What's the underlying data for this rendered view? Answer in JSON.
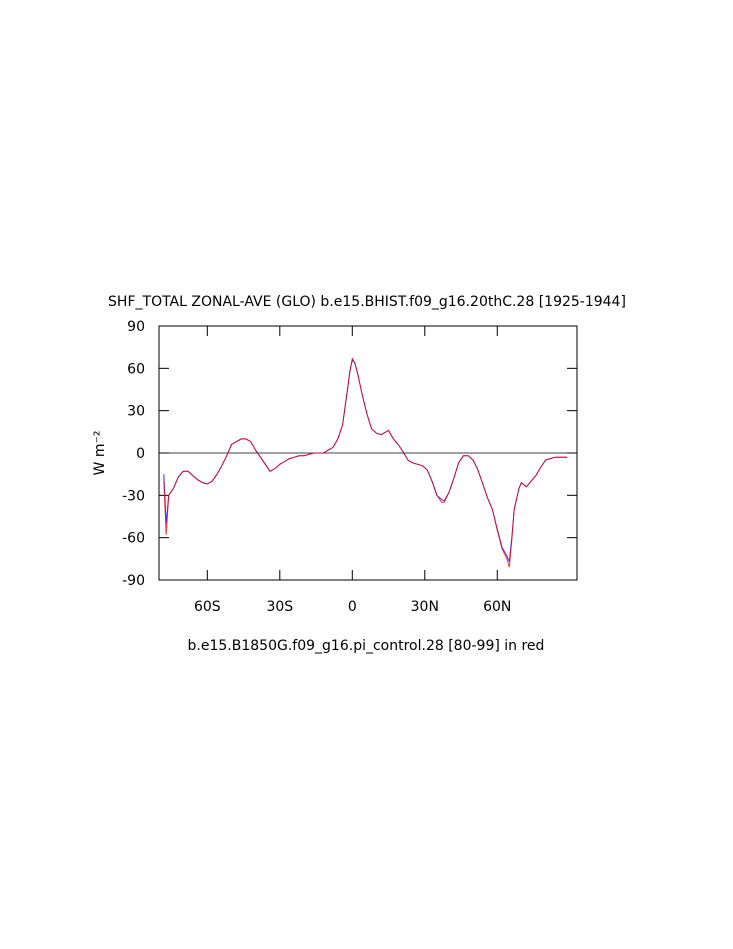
{
  "chart_data": {
    "type": "line",
    "title": "SHF_TOTAL ZONAL-AVE (GLO) b.e15.BHIST.f09_g16.20thC.28 [1925-1944]",
    "y_label": "W m⁻²",
    "subtitle": "b.e15.B1850G.f09_g16.pi_control.28 [80-99] in red",
    "x": [
      -78,
      -77,
      -76,
      -74,
      -72,
      -70,
      -68,
      -66,
      -64,
      -62,
      -60,
      -58,
      -56,
      -54,
      -52,
      -50,
      -48,
      -46,
      -44,
      -42,
      -40,
      -38,
      -36,
      -34,
      -32,
      -30,
      -28,
      -26,
      -24,
      -22,
      -20,
      -18,
      -16,
      -14,
      -12,
      -10,
      -8,
      -6,
      -4,
      -2,
      -1,
      0,
      1,
      2,
      4,
      6,
      8,
      10,
      12,
      14,
      15,
      17,
      19,
      21,
      23,
      25,
      27,
      29,
      31,
      33,
      35,
      37,
      38,
      40,
      42,
      44,
      46,
      48,
      50,
      52,
      54,
      56,
      58,
      60,
      62,
      64,
      65,
      66,
      67,
      69,
      70,
      72,
      74,
      76,
      78,
      80,
      82,
      84,
      86,
      88,
      89
    ],
    "series": [
      {
        "name": "b.e15.BHIST.f09_g16.20thC.28",
        "color": "#0000ff",
        "values": [
          -15,
          -50,
          -30,
          -25,
          -17,
          -13,
          -13,
          -16,
          -19,
          -21,
          -22,
          -20,
          -15,
          -9,
          -2,
          6,
          8,
          10,
          10,
          8,
          2,
          -3,
          -8,
          -13,
          -11,
          -8,
          -6,
          -4,
          -3,
          -2,
          -2,
          -1,
          0,
          0,
          0,
          2,
          4,
          10,
          20,
          45,
          58,
          66,
          64,
          58,
          42,
          28,
          17,
          14,
          13,
          15,
          16,
          10,
          6,
          1,
          -5,
          -7,
          -8,
          -9,
          -12,
          -20,
          -30,
          -33,
          -34,
          -28,
          -18,
          -7,
          -2,
          -2,
          -5,
          -12,
          -22,
          -32,
          -40,
          -54,
          -67,
          -73,
          -77,
          -60,
          -40,
          -25,
          -21,
          -24,
          -20,
          -16,
          -10,
          -5,
          -4,
          -3,
          -3,
          -3,
          -3
        ]
      },
      {
        "name": "b.e15.B1850G.f09_g16.pi_control.28",
        "color": "#ff0000",
        "values": [
          -20,
          -58,
          -30,
          -25,
          -17,
          -13,
          -13,
          -16,
          -19,
          -21,
          -22,
          -20,
          -15,
          -9,
          -2,
          6,
          8,
          10,
          10,
          8,
          2,
          -3,
          -8,
          -13,
          -11,
          -8,
          -6,
          -4,
          -3,
          -2,
          -2,
          -1,
          0,
          0,
          0,
          2,
          4,
          10,
          20,
          45,
          58,
          67,
          64,
          58,
          42,
          28,
          17,
          14,
          13,
          15,
          16,
          10,
          6,
          1,
          -5,
          -7,
          -8,
          -9,
          -12,
          -20,
          -30,
          -35,
          -35,
          -28,
          -18,
          -7,
          -2,
          -2,
          -5,
          -12,
          -22,
          -32,
          -40,
          -55,
          -68,
          -75,
          -81,
          -62,
          -40,
          -25,
          -21,
          -24,
          -20,
          -16,
          -10,
          -5,
          -4,
          -3,
          -3,
          -3,
          -3
        ]
      }
    ],
    "xlim": [
      -80,
      93
    ],
    "ylim": [
      -90,
      90
    ],
    "xticks": [
      {
        "value": -60,
        "label": "60S"
      },
      {
        "value": -30,
        "label": "30S"
      },
      0,
      {
        "value": 30,
        "label": "30N"
      },
      {
        "value": 60,
        "label": "60N"
      }
    ],
    "yticks": [
      -90,
      -60,
      -30,
      0,
      30,
      60,
      90
    ]
  }
}
